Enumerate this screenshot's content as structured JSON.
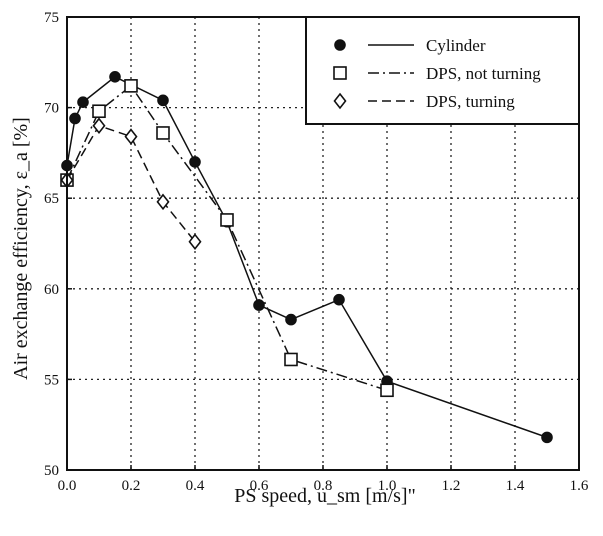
{
  "chart_data": {
    "type": "line",
    "title": "",
    "xlabel": "PS speed, u_sm  [m/s]\"",
    "ylabel": "Air exchange efficiency, ε_a  [%]",
    "xlim": [
      0.0,
      1.6
    ],
    "ylim": [
      50,
      75
    ],
    "xticks": [
      "0.0",
      "0.2",
      "0.4",
      "0.6",
      "0.8",
      "1.0",
      "1.2",
      "1.4",
      "1.6"
    ],
    "yticks": [
      "50",
      "55",
      "60",
      "65",
      "70",
      "75"
    ],
    "grid": "dotted",
    "legend_position": "top-right",
    "series": [
      {
        "name": "Cylinder",
        "marker": "filled-circle",
        "line": "solid",
        "x": [
          0.0,
          0.025,
          0.05,
          0.15,
          0.3,
          0.4,
          0.5,
          0.6,
          0.7,
          0.85,
          1.0,
          1.5
        ],
        "y": [
          66.8,
          69.4,
          70.3,
          71.7,
          70.4,
          67.0,
          63.7,
          59.1,
          58.3,
          59.4,
          54.9,
          51.8
        ]
      },
      {
        "name": "DPS, not turning",
        "marker": "open-square",
        "line": "dash-dot",
        "x": [
          0.0,
          0.1,
          0.2,
          0.3,
          0.5,
          0.7,
          1.0
        ],
        "y": [
          66.0,
          69.8,
          71.2,
          68.6,
          63.8,
          56.1,
          54.4
        ]
      },
      {
        "name": "DPS, turning",
        "marker": "open-diamond",
        "line": "dashed",
        "x": [
          0.0,
          0.1,
          0.2,
          0.3,
          0.4
        ],
        "y": [
          66.0,
          69.0,
          68.4,
          64.8,
          62.6
        ]
      }
    ]
  }
}
